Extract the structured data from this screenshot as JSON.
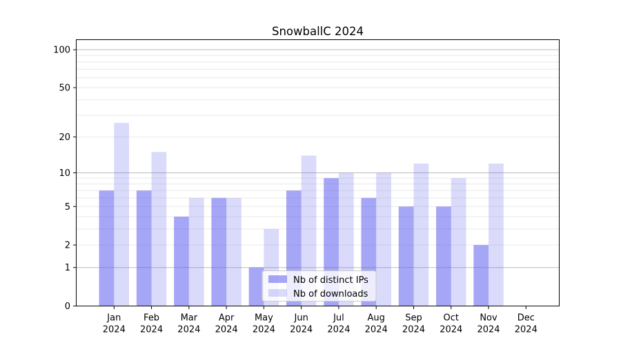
{
  "chart_data": {
    "type": "bar",
    "title": "SnowballC 2024",
    "categories": [
      "Jan",
      "Feb",
      "Mar",
      "Apr",
      "May",
      "Jun",
      "Jul",
      "Aug",
      "Sep",
      "Oct",
      "Nov",
      "Dec"
    ],
    "category_sublabel": "2024",
    "series": [
      {
        "name": "Nb of distinct IPs",
        "color": "rgba(85,85,238,0.52)",
        "values": [
          7,
          7,
          4,
          6,
          1,
          7,
          9,
          6,
          5,
          5,
          2,
          0
        ]
      },
      {
        "name": "Nb of downloads",
        "color": "rgba(85,85,238,0.22)",
        "values": [
          26,
          15,
          6,
          6,
          3,
          14,
          10,
          10,
          12,
          9,
          12,
          0
        ]
      }
    ],
    "yscale": "log1p",
    "ylim": [
      0,
      120
    ],
    "yticks_labeled": [
      0,
      1,
      2,
      5,
      10,
      20,
      50,
      100
    ],
    "yticks_major_grid": [
      1,
      10,
      100
    ],
    "yticks_minor_grid": [
      2,
      3,
      4,
      5,
      6,
      7,
      8,
      9,
      20,
      30,
      40,
      50,
      60,
      70,
      80,
      90
    ],
    "grid": true,
    "legend_position": "lower center",
    "colors": {
      "axis_spine": "#000000",
      "major_grid": "#bbbbbb",
      "minor_grid": "#eaeaea",
      "legend_bg": "rgba(255,255,255,0.8)",
      "legend_border": "#cccccc",
      "text": "#000000"
    }
  }
}
